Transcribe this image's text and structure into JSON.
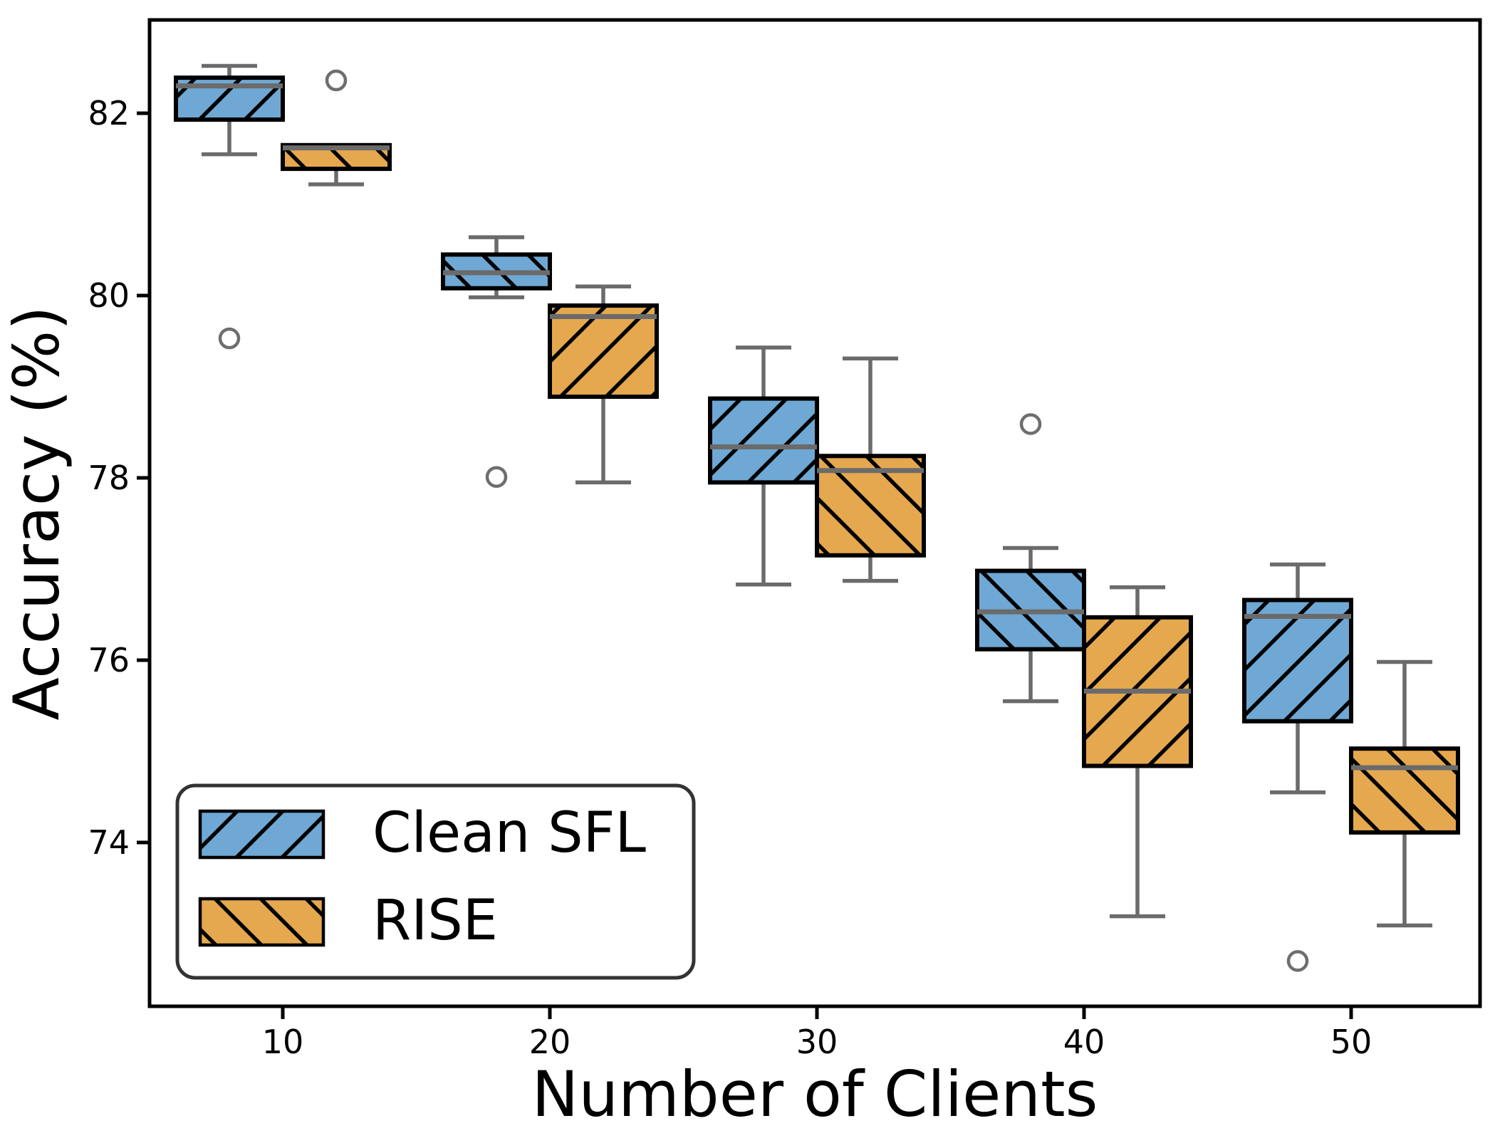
{
  "figure": {
    "background": "#ffffff"
  },
  "chart_data": {
    "type": "boxplot",
    "title": "",
    "xlabel": "Number of Clients",
    "ylabel": "Accuracy (%)",
    "categories": [
      10,
      20,
      30,
      40,
      50
    ],
    "x_tick_labels": [
      "10",
      "20",
      "30",
      "40",
      "50"
    ],
    "y_ticks": [
      74,
      76,
      78,
      80,
      82
    ],
    "y_tick_labels": [
      "74",
      "76",
      "78",
      "80",
      "82"
    ],
    "ylim": [
      72.1,
      83.0
    ],
    "grid": false,
    "legend": {
      "position": "lower-left",
      "entries": [
        "Clean SFL",
        "RISE"
      ]
    },
    "series": [
      {
        "name": "Clean SFL",
        "color": "#6FA8D4",
        "hatches": [
          "/",
          "\\",
          "/",
          "\\",
          "/"
        ],
        "boxes": [
          {
            "category": 10,
            "whislo": 81.55,
            "q1": 81.93,
            "med": 82.3,
            "q3": 82.39,
            "whishi": 82.52,
            "fliers": [
              79.53
            ]
          },
          {
            "category": 20,
            "whislo": 79.98,
            "q1": 80.08,
            "med": 80.25,
            "q3": 80.45,
            "whishi": 80.64,
            "fliers": [
              78.01
            ]
          },
          {
            "category": 30,
            "whislo": 76.83,
            "q1": 77.95,
            "med": 78.34,
            "q3": 78.87,
            "whishi": 79.43,
            "fliers": []
          },
          {
            "category": 40,
            "whislo": 75.55,
            "q1": 76.12,
            "med": 76.53,
            "q3": 76.98,
            "whishi": 77.23,
            "fliers": [
              78.59
            ]
          },
          {
            "category": 50,
            "whislo": 74.55,
            "q1": 75.33,
            "med": 76.48,
            "q3": 76.66,
            "whishi": 77.05,
            "fliers": [
              72.7
            ]
          }
        ]
      },
      {
        "name": "RISE",
        "color": "#E5A84F",
        "hatches": [
          "\\",
          "/",
          "\\",
          "/",
          "\\"
        ],
        "boxes": [
          {
            "category": 10,
            "whislo": 81.22,
            "q1": 81.39,
            "med": 81.62,
            "q3": 81.65,
            "whishi": 81.65,
            "fliers": [
              82.36
            ]
          },
          {
            "category": 20,
            "whislo": 77.95,
            "q1": 78.89,
            "med": 79.77,
            "q3": 79.89,
            "whishi": 80.1,
            "fliers": []
          },
          {
            "category": 30,
            "whislo": 76.87,
            "q1": 77.15,
            "med": 78.08,
            "q3": 78.24,
            "whishi": 79.31,
            "fliers": []
          },
          {
            "category": 40,
            "whislo": 73.19,
            "q1": 74.84,
            "med": 75.66,
            "q3": 76.47,
            "whishi": 76.8,
            "fliers": []
          },
          {
            "category": 50,
            "whislo": 73.09,
            "q1": 74.11,
            "med": 74.82,
            "q3": 75.03,
            "whishi": 75.98,
            "fliers": []
          }
        ]
      }
    ],
    "style": {
      "box_edge_color": "#000000",
      "whisker_color": "#6B6B6B",
      "median_color": "#6B6B6B",
      "flier_edge_color": "#6E6E6E",
      "hatch_color": "#000000"
    }
  }
}
